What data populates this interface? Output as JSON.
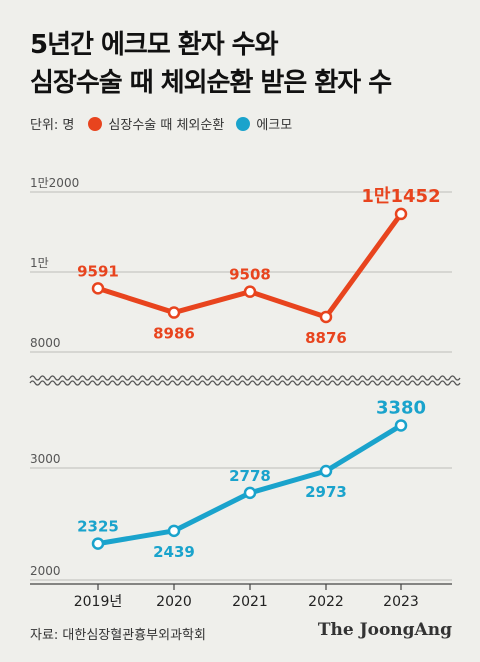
{
  "title_lines": [
    "5년간 에크모 환자 수와",
    "심장수술 때 체외순환 받은 환자 수"
  ],
  "legend": {
    "unit": "단위: 명",
    "items": [
      {
        "label": "심장수술 때 체외순환",
        "color": "#e8441e"
      },
      {
        "label": "에크모",
        "color": "#1aa3cc"
      }
    ]
  },
  "source": "자료: 대한심장혈관흉부외과학회",
  "brand": "The JoongAng",
  "chart_data": {
    "type": "line",
    "categories": [
      "2019년",
      "2020",
      "2021",
      "2022",
      "2023"
    ],
    "axis_break": true,
    "upper_panel": {
      "ylim": [
        8000,
        12000
      ],
      "ticks": [
        {
          "value": 8000,
          "label": "8000"
        },
        {
          "value": 10000,
          "label": "1만"
        },
        {
          "value": 12000,
          "label": "1만2000"
        }
      ],
      "series": [
        {
          "name": "심장수술 때 체외순환",
          "color": "#e8441e",
          "values": [
            9591,
            8986,
            9508,
            8876,
            11452
          ],
          "labels": [
            "9591",
            "8986",
            "9508",
            "8876",
            "1만1452"
          ]
        }
      ]
    },
    "lower_panel": {
      "ylim": [
        2000,
        3500
      ],
      "ticks": [
        {
          "value": 2000,
          "label": "2000"
        },
        {
          "value": 3000,
          "label": "3000"
        }
      ],
      "series": [
        {
          "name": "에크모",
          "color": "#1aa3cc",
          "values": [
            2325,
            2439,
            2778,
            2973,
            3380
          ],
          "labels": [
            "2325",
            "2439",
            "2778",
            "2973",
            "3380"
          ]
        }
      ]
    }
  }
}
